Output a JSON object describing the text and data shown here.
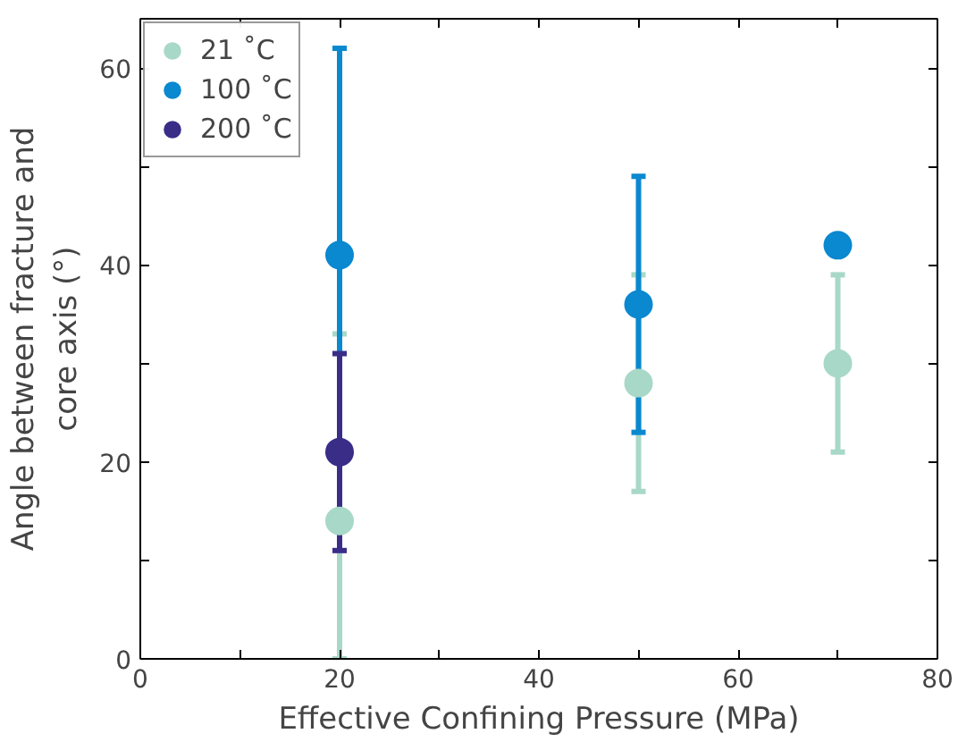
{
  "chart_data": {
    "type": "scatter",
    "xlabel": "Effective Confining Pressure (MPa)",
    "ylabel": "Angle between fracture and\ncore axis (°)",
    "x": [
      20,
      50,
      70
    ],
    "series": [
      {
        "name": "21 ˚C",
        "color": "#a8d8c8",
        "values": [
          14,
          28,
          30
        ],
        "errors": [
          [
            0,
            33
          ],
          [
            17,
            39
          ],
          [
            21,
            39
          ]
        ]
      },
      {
        "name": "100 ˚C",
        "color": "#0a88d0",
        "values": [
          41,
          36,
          42
        ],
        "errors": [
          [
            20,
            62
          ],
          [
            23,
            49
          ],
          null
        ]
      },
      {
        "name": "200 ˚C",
        "color": "#3a2d88",
        "values": [
          21,
          null,
          null
        ],
        "errors": [
          [
            11,
            31
          ],
          null,
          null
        ]
      }
    ],
    "xlim": [
      0,
      80
    ],
    "ylim": [
      0,
      65
    ],
    "xticks": [
      0,
      {
        "value": 10,
        "label": null
      },
      20,
      {
        "value": 30,
        "label": null
      },
      40,
      {
        "value": 50,
        "label": null
      },
      60,
      {
        "value": 70,
        "label": null
      },
      80
    ],
    "yticks": [
      0,
      {
        "value": 10,
        "label": null
      },
      20,
      {
        "value": 30,
        "label": null
      },
      40,
      {
        "value": 50,
        "label": null
      },
      60
    ],
    "marker": "circle",
    "grid": false,
    "legend": "top left"
  }
}
